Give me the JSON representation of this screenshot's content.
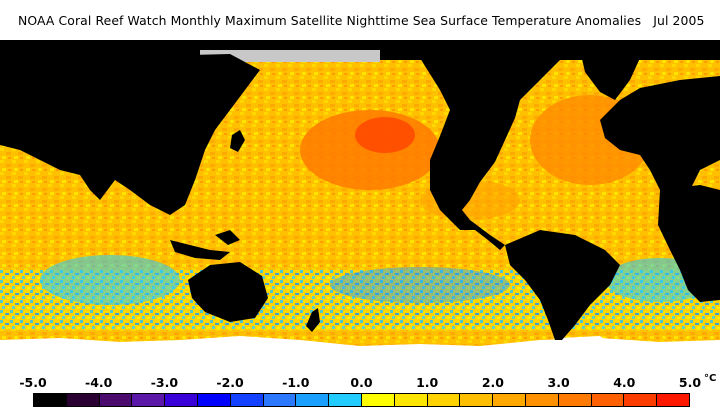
{
  "title": "NOAA Coral Reef Watch Monthly Maximum Satellite Nighttime Sea Surface Temperature Anomalies",
  "date": "Jul 2005",
  "legend": {
    "ticks": [
      "-5.0",
      "-4.0",
      "-3.0",
      "-2.0",
      "-1.0",
      "0.0",
      "1.0",
      "2.0",
      "3.0",
      "4.0",
      "5.0"
    ],
    "unit": "°C",
    "colors": [
      "#000000",
      "#2a0033",
      "#4b0a6e",
      "#5a17a8",
      "#3a00d8",
      "#0000ff",
      "#1440ff",
      "#2c78ff",
      "#1aa0ff",
      "#22ccff",
      "#ffff00",
      "#ffe600",
      "#ffd200",
      "#ffbe00",
      "#ffa800",
      "#ff9000",
      "#ff7a00",
      "#ff6000",
      "#ff3c00",
      "#ff1800"
    ]
  },
  "colors": {
    "land": "#000000",
    "ice": "#ffffff",
    "no_data": "#c8c8c8",
    "ocean_warm": "#ffc800",
    "ocean_hot": "#ff7a00",
    "ocean_cool": "#22ccff"
  }
}
